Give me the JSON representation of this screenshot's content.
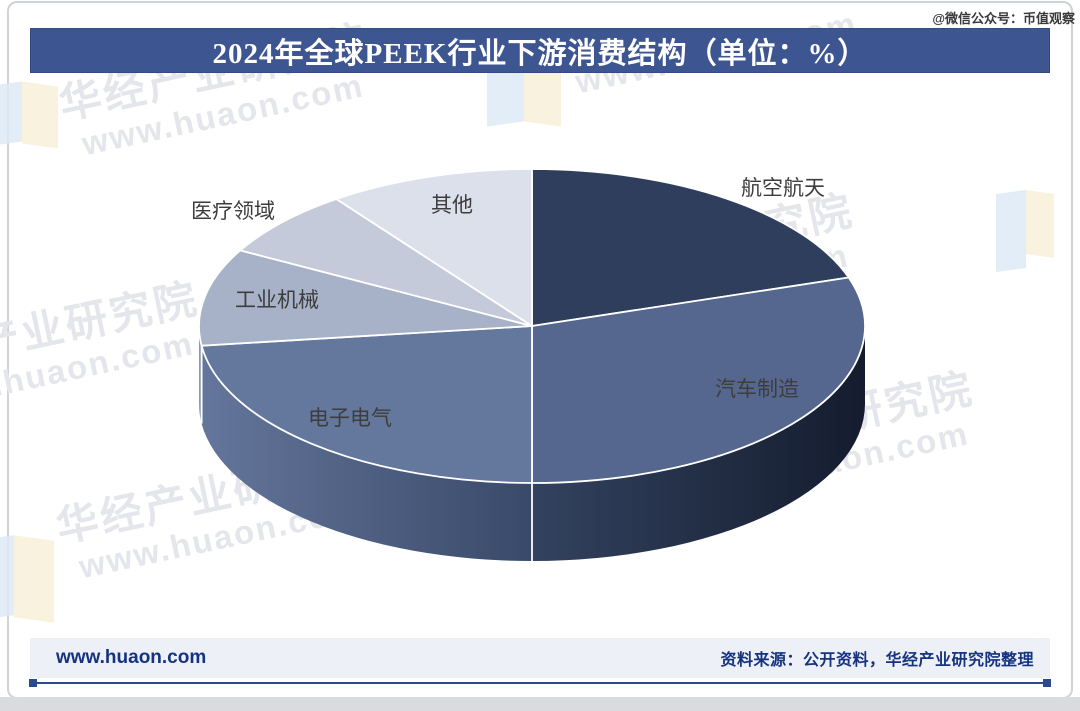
{
  "page": {
    "corner_watermark": "@微信公众号：币值观察"
  },
  "header": {
    "title": "2024年全球PEEK行业下游消费结构（单位：%）"
  },
  "watermark": {
    "brand": "华经产业研究院",
    "url": "www.huaon.com"
  },
  "footer": {
    "site": "www.huaon.com",
    "source": "资料来源：公开资料，华经产业研究院整理"
  },
  "chart_data": {
    "type": "pie",
    "style": "3d",
    "title": "2024年全球PEEK行业下游消费结构",
    "unit": "%",
    "legend_position": "none",
    "data_labels_shown": "category-names-only",
    "labels": [
      "航空航天",
      "汽车制造",
      "电子电气",
      "工业机械",
      "医疗领域",
      "其他"
    ],
    "ids": [
      "aerospace",
      "automotive",
      "electronics",
      "industrial-machinery",
      "medical",
      "other"
    ],
    "values": [
      20,
      30,
      23,
      10,
      7,
      10
    ],
    "values_are_estimates": true,
    "start_angle_deg": 90,
    "direction": "clockwise",
    "colors": [
      "#2e3e5c",
      "#55678e",
      "#64779d",
      "#a7b2c8",
      "#c4cad9",
      "#dce0ea"
    ],
    "side_colors": [
      [
        "#1c2740",
        "#1c2740"
      ],
      [
        "#33425f",
        "#141c2e"
      ],
      [
        "#64769b",
        "#394969"
      ],
      [
        "#8e9ab5",
        "#848fab"
      ],
      [
        "#9aa5bd",
        "#9aa5bd"
      ],
      [
        "#c4c9d6",
        "#c4c9d6"
      ]
    ]
  }
}
